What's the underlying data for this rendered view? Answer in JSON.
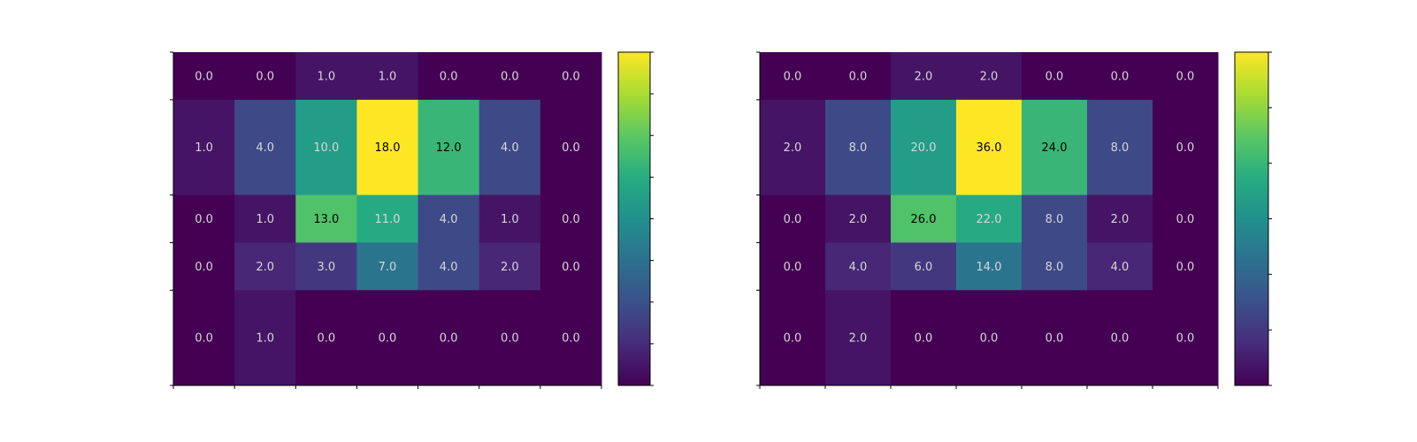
{
  "chart_data": [
    {
      "type": "heatmap",
      "title": "",
      "xlabel": "",
      "ylabel": "",
      "x_ticks_shown": true,
      "x_tick_labels_shown": false,
      "y_tick_labels_shown": false,
      "colormap": "viridis",
      "vmin": 0,
      "vmax": 18,
      "row_weights": [
        1.0,
        2.0,
        1.0,
        1.0,
        2.0
      ],
      "col_weights": [
        1,
        1,
        1,
        1,
        1,
        1,
        1
      ],
      "values": [
        [
          0.0,
          0.0,
          1.0,
          1.0,
          0.0,
          0.0,
          0.0
        ],
        [
          1.0,
          4.0,
          10.0,
          18.0,
          12.0,
          4.0,
          0.0
        ],
        [
          0.0,
          1.0,
          13.0,
          11.0,
          4.0,
          1.0,
          0.0
        ],
        [
          0.0,
          2.0,
          3.0,
          7.0,
          4.0,
          2.0,
          0.0
        ],
        [
          0.0,
          1.0,
          0.0,
          0.0,
          0.0,
          0.0,
          0.0
        ]
      ],
      "labels": [
        [
          "0.0",
          "0.0",
          "1.0",
          "1.0",
          "0.0",
          "0.0",
          "0.0"
        ],
        [
          "1.0",
          "4.0",
          "10.0",
          "18.0",
          "12.0",
          "4.0",
          "0.0"
        ],
        [
          "0.0",
          "1.0",
          "13.0",
          "11.0",
          "4.0",
          "1.0",
          "0.0"
        ],
        [
          "0.0",
          "2.0",
          "3.0",
          "7.0",
          "4.0",
          "2.0",
          "0.0"
        ],
        [
          "0.0",
          "1.0",
          "0.0",
          "0.0",
          "0.0",
          "0.0",
          "0.0"
        ]
      ],
      "colorbar": {
        "ticks": 9,
        "tick_labels_shown": false
      }
    },
    {
      "type": "heatmap",
      "title": "",
      "xlabel": "",
      "ylabel": "",
      "x_ticks_shown": true,
      "x_tick_labels_shown": false,
      "y_tick_labels_shown": false,
      "colormap": "viridis",
      "vmin": 0,
      "vmax": 36,
      "row_weights": [
        1.0,
        2.0,
        1.0,
        1.0,
        2.0
      ],
      "col_weights": [
        1,
        1,
        1,
        1,
        1,
        1,
        1
      ],
      "values": [
        [
          0.0,
          0.0,
          2.0,
          2.0,
          0.0,
          0.0,
          0.0
        ],
        [
          2.0,
          8.0,
          20.0,
          36.0,
          24.0,
          8.0,
          0.0
        ],
        [
          0.0,
          2.0,
          26.0,
          22.0,
          8.0,
          2.0,
          0.0
        ],
        [
          0.0,
          4.0,
          6.0,
          14.0,
          8.0,
          4.0,
          0.0
        ],
        [
          0.0,
          2.0,
          0.0,
          0.0,
          0.0,
          0.0,
          0.0
        ]
      ],
      "labels": [
        [
          "0.0",
          "0.0",
          "2.0",
          "2.0",
          "0.0",
          "0.0",
          "0.0"
        ],
        [
          "2.0",
          "8.0",
          "20.0",
          "36.0",
          "24.0",
          "8.0",
          "0.0"
        ],
        [
          "0.0",
          "2.0",
          "26.0",
          "22.0",
          "8.0",
          "2.0",
          "0.0"
        ],
        [
          "0.0",
          "4.0",
          "6.0",
          "14.0",
          "8.0",
          "4.0",
          "0.0"
        ],
        [
          "0.0",
          "2.0",
          "0.0",
          "0.0",
          "0.0",
          "0.0",
          "0.0"
        ]
      ],
      "colorbar": {
        "ticks": 7,
        "tick_labels_shown": false
      }
    }
  ]
}
